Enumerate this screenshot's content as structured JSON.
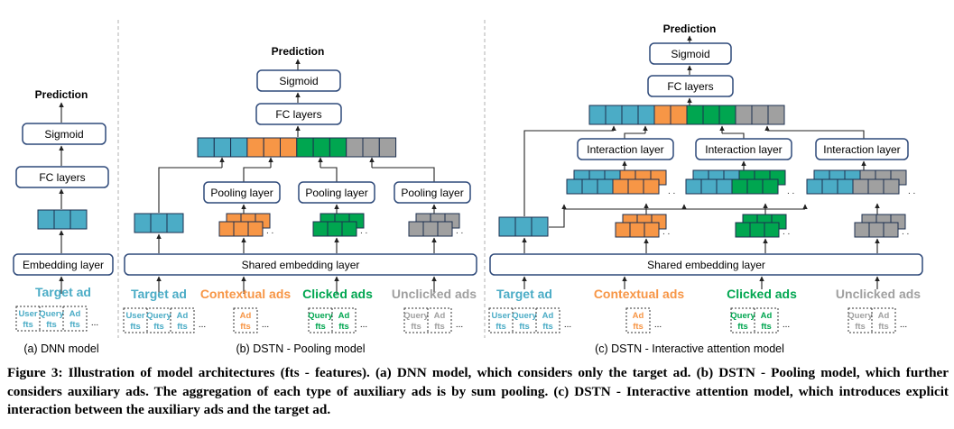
{
  "figure": {
    "panels": [
      {
        "sublabel": "(a) DNN model"
      },
      {
        "sublabel": "(b) DSTN - Pooling model"
      },
      {
        "sublabel": "(c) DSTN - Interactive attention model"
      }
    ],
    "labels": {
      "prediction": "Prediction",
      "sigmoid": "Sigmoid",
      "fc_layers": "FC layers",
      "embedding_layer": "Embedding layer",
      "shared_embedding_layer": "Shared embedding layer",
      "pooling_layer": "Pooling layer",
      "interaction_layer": "Interaction layer",
      "target_ad": "Target ad",
      "contextual_ads": "Contextual ads",
      "clicked_ads": "Clicked ads",
      "unclicked_ads": "Unclicked ads",
      "user_fts_1": "User",
      "user_fts_2": "fts",
      "query_fts_1": "Query",
      "query_fts_2": "fts",
      "ad_fts_1": "Ad",
      "ad_fts_2": "fts",
      "ellipsis": "..."
    },
    "colors": {
      "target": "#4bacc6",
      "contextual": "#f79646",
      "clicked": "#00a650",
      "unclicked": "#a0a0a0",
      "box_border": "#2f4a7a"
    }
  },
  "caption": "Figure 3: Illustration of model architectures (fts - features). (a) DNN model, which considers only the target ad. (b) DSTN - Pooling model, which further considers auxiliary ads. The aggregation of each type of auxiliary ads is by sum pooling. (c) DSTN - Interactive attention model, which introduces explicit interaction between the auxiliary ads and the target ad."
}
